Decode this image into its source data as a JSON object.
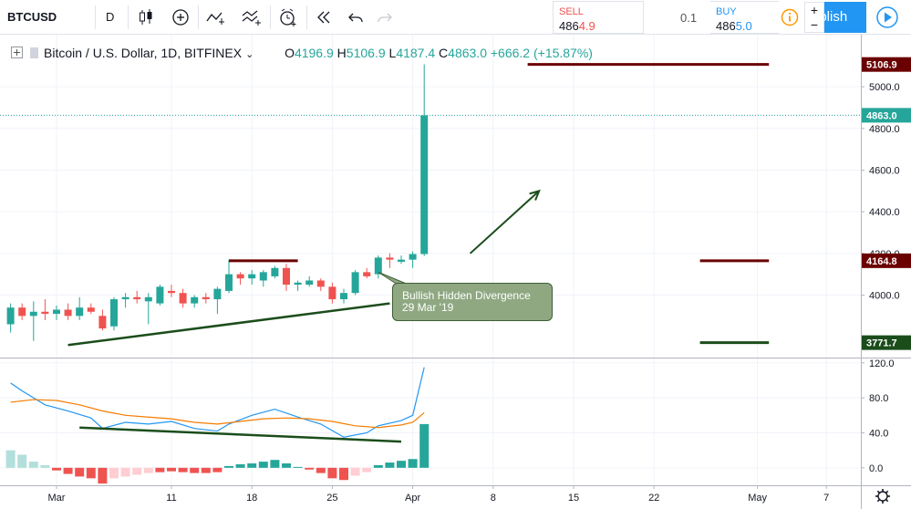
{
  "toolbar": {
    "symbol": "BTCUSD",
    "interval": "D",
    "icons": [
      "candles-icon",
      "add-indicator-icon",
      "drawing-icon",
      "compare-icon",
      "alert-icon",
      "replay-icon",
      "undo-icon",
      "redo-icon"
    ],
    "sell_label": "SELL",
    "sell_price_main": "486",
    "sell_price_hl": "4.9",
    "spread": "0.1",
    "buy_label": "BUY",
    "buy_price_main": "486",
    "buy_price_hl": "5.0",
    "publish_label": "ublish",
    "zoom_in": "+",
    "zoom_out": "−",
    "colors": {
      "sell": "#ef5350",
      "buy": "#2196f3",
      "publish": "#2196f3",
      "info": "#ff9800"
    }
  },
  "legend": {
    "title": "Bitcoin / U.S. Dollar, 1D, BITFINEX",
    "open_key": "O",
    "open": "4196.9",
    "high_key": "H",
    "high": "5106.9",
    "low_key": "L",
    "low": "4187.4",
    "close_key": "C",
    "close": "4863.0",
    "change": "+666.2 (+15.87%)"
  },
  "annotation": {
    "line1": "Bullish Hidden Divergence",
    "line2": "29 Mar '19"
  },
  "chart_data": [
    {
      "type": "candlestick",
      "title": "Bitcoin / U.S. Dollar, 1D, BITFINEX",
      "ylim": [
        3700,
        5250
      ],
      "y_ticks": [
        4000.0,
        4200.0,
        4400.0,
        4600.0,
        4800.0,
        5000.0
      ],
      "x_tick_labels": [
        {
          "label": "Mar",
          "day": 0
        },
        {
          "label": "11",
          "day": 10
        },
        {
          "label": "18",
          "day": 17
        },
        {
          "label": "25",
          "day": 24
        },
        {
          "label": "Apr",
          "day": 31
        },
        {
          "label": "8",
          "day": 38
        },
        {
          "label": "15",
          "day": 45
        },
        {
          "label": "22",
          "day": 52
        },
        {
          "label": "May",
          "day": 61
        },
        {
          "label": "7",
          "day": 67
        }
      ],
      "candles": [
        {
          "day": -4,
          "o": 3860,
          "h": 3960,
          "l": 3820,
          "c": 3940
        },
        {
          "day": -3,
          "o": 3940,
          "h": 3960,
          "l": 3880,
          "c": 3900
        },
        {
          "day": -2,
          "o": 3900,
          "h": 3970,
          "l": 3780,
          "c": 3920
        },
        {
          "day": -1,
          "o": 3920,
          "h": 3980,
          "l": 3880,
          "c": 3910
        },
        {
          "day": 0,
          "o": 3910,
          "h": 3950,
          "l": 3880,
          "c": 3930
        },
        {
          "day": 1,
          "o": 3930,
          "h": 3960,
          "l": 3880,
          "c": 3900
        },
        {
          "day": 2,
          "o": 3900,
          "h": 3990,
          "l": 3880,
          "c": 3940
        },
        {
          "day": 3,
          "o": 3940,
          "h": 3960,
          "l": 3910,
          "c": 3920
        },
        {
          "day": 4,
          "o": 3900,
          "h": 3930,
          "l": 3830,
          "c": 3840
        },
        {
          "day": 5,
          "o": 3850,
          "h": 3990,
          "l": 3830,
          "c": 3980
        },
        {
          "day": 6,
          "o": 3980,
          "h": 4010,
          "l": 3940,
          "c": 3990
        },
        {
          "day": 7,
          "o": 3990,
          "h": 4020,
          "l": 3960,
          "c": 3980
        },
        {
          "day": 8,
          "o": 3970,
          "h": 4010,
          "l": 3860,
          "c": 3990
        },
        {
          "day": 9,
          "o": 3960,
          "h": 4050,
          "l": 3950,
          "c": 4040
        },
        {
          "day": 10,
          "o": 4020,
          "h": 4050,
          "l": 3990,
          "c": 4010
        },
        {
          "day": 11,
          "o": 4010,
          "h": 4030,
          "l": 3940,
          "c": 3960
        },
        {
          "day": 12,
          "o": 3960,
          "h": 4000,
          "l": 3940,
          "c": 3990
        },
        {
          "day": 13,
          "o": 3990,
          "h": 4010,
          "l": 3960,
          "c": 3980
        },
        {
          "day": 14,
          "o": 3980,
          "h": 4040,
          "l": 3910,
          "c": 4030
        },
        {
          "day": 15,
          "o": 4020,
          "h": 4170,
          "l": 4010,
          "c": 4100
        },
        {
          "day": 16,
          "o": 4100,
          "h": 4110,
          "l": 4050,
          "c": 4080
        },
        {
          "day": 17,
          "o": 4080,
          "h": 4120,
          "l": 4050,
          "c": 4100
        },
        {
          "day": 18,
          "o": 4070,
          "h": 4120,
          "l": 4040,
          "c": 4110
        },
        {
          "day": 19,
          "o": 4090,
          "h": 4140,
          "l": 4080,
          "c": 4130
        },
        {
          "day": 20,
          "o": 4130,
          "h": 4150,
          "l": 4020,
          "c": 4050
        },
        {
          "day": 21,
          "o": 4050,
          "h": 4070,
          "l": 4020,
          "c": 4060
        },
        {
          "day": 22,
          "o": 4050,
          "h": 4090,
          "l": 4040,
          "c": 4070
        },
        {
          "day": 23,
          "o": 4070,
          "h": 4080,
          "l": 4020,
          "c": 4040
        },
        {
          "day": 24,
          "o": 4040,
          "h": 4060,
          "l": 3960,
          "c": 3980
        },
        {
          "day": 25,
          "o": 3980,
          "h": 4030,
          "l": 3960,
          "c": 4010
        },
        {
          "day": 26,
          "o": 4010,
          "h": 4120,
          "l": 4000,
          "c": 4110
        },
        {
          "day": 27,
          "o": 4110,
          "h": 4130,
          "l": 4080,
          "c": 4090
        },
        {
          "day": 28,
          "o": 4100,
          "h": 4190,
          "l": 4080,
          "c": 4180
        },
        {
          "day": 29,
          "o": 4180,
          "h": 4200,
          "l": 4130,
          "c": 4170
        },
        {
          "day": 30,
          "o": 4160,
          "h": 4190,
          "l": 4150,
          "c": 4170
        },
        {
          "day": 31,
          "o": 4170,
          "h": 4210,
          "l": 4130,
          "c": 4197
        },
        {
          "day": 32,
          "o": 4196.9,
          "h": 5106.9,
          "l": 4187.4,
          "c": 4863.0
        }
      ],
      "price_tags": [
        {
          "value": "5106.9",
          "price": 5106.9,
          "color": "#6b0000"
        },
        {
          "value": "4863.0",
          "price": 4863.0,
          "color": "#26a69a"
        },
        {
          "value": "4164.8",
          "price": 4164.8,
          "color": "#6b0000"
        },
        {
          "value": "3771.7",
          "price": 3771.7,
          "color": "#1b4d1b"
        }
      ],
      "horizontal_lines": [
        {
          "price": 5106.9,
          "from_day": 41,
          "to_day": 62,
          "color": "#6b0000"
        },
        {
          "price": 4164.8,
          "from_day": 56,
          "to_day": 62,
          "color": "#6b0000"
        },
        {
          "price": 3771.7,
          "from_day": 56,
          "to_day": 62,
          "color": "#1b4d1b"
        },
        {
          "price": 4164.8,
          "from_day": 15,
          "to_day": 21,
          "color": "#6b0000"
        }
      ],
      "trend_lines": [
        {
          "from": {
            "day": 1,
            "price": 3760
          },
          "to": {
            "day": 29,
            "price": 3960
          },
          "color": "#1b4d1b"
        }
      ],
      "arrow": {
        "from": {
          "day": 36,
          "price": 4200
        },
        "to": {
          "day": 42,
          "price": 4500
        },
        "color": "#1b4d1b"
      },
      "current_price_line": {
        "price": 4863.0,
        "color": "#26a69a"
      }
    },
    {
      "type": "line+bar",
      "ylim": [
        -20,
        125
      ],
      "y_ticks": [
        0.0,
        40.0,
        80.0,
        120.0
      ],
      "series": [
        {
          "color": "#2196f3",
          "values": [
            {
              "day": -4,
              "v": 97
            },
            {
              "day": -3,
              "v": 88
            },
            {
              "day": -2,
              "v": 80
            },
            {
              "day": -1,
              "v": 72
            },
            {
              "day": 1,
              "v": 65
            },
            {
              "day": 3,
              "v": 57
            },
            {
              "day": 4,
              "v": 45
            },
            {
              "day": 6,
              "v": 52
            },
            {
              "day": 8,
              "v": 50
            },
            {
              "day": 10,
              "v": 53
            },
            {
              "day": 12,
              "v": 45
            },
            {
              "day": 14,
              "v": 42
            },
            {
              "day": 15,
              "v": 50
            },
            {
              "day": 17,
              "v": 60
            },
            {
              "day": 19,
              "v": 67
            },
            {
              "day": 21,
              "v": 58
            },
            {
              "day": 23,
              "v": 50
            },
            {
              "day": 25,
              "v": 35
            },
            {
              "day": 27,
              "v": 40
            },
            {
              "day": 28,
              "v": 48
            },
            {
              "day": 30,
              "v": 54
            },
            {
              "day": 31,
              "v": 60
            },
            {
              "day": 32,
              "v": 115
            }
          ]
        },
        {
          "color": "#f57c00",
          "values": [
            {
              "day": -4,
              "v": 75
            },
            {
              "day": -2,
              "v": 78
            },
            {
              "day": 0,
              "v": 77
            },
            {
              "day": 2,
              "v": 72
            },
            {
              "day": 4,
              "v": 65
            },
            {
              "day": 6,
              "v": 60
            },
            {
              "day": 8,
              "v": 58
            },
            {
              "day": 10,
              "v": 56
            },
            {
              "day": 12,
              "v": 52
            },
            {
              "day": 14,
              "v": 50
            },
            {
              "day": 16,
              "v": 53
            },
            {
              "day": 18,
              "v": 56
            },
            {
              "day": 20,
              "v": 57
            },
            {
              "day": 22,
              "v": 56
            },
            {
              "day": 24,
              "v": 53
            },
            {
              "day": 26,
              "v": 48
            },
            {
              "day": 28,
              "v": 46
            },
            {
              "day": 30,
              "v": 49
            },
            {
              "day": 31,
              "v": 52
            },
            {
              "day": 32,
              "v": 63
            }
          ]
        }
      ],
      "histogram": [
        {
          "day": -4,
          "v": 20
        },
        {
          "day": -3,
          "v": 15
        },
        {
          "day": -2,
          "v": 7
        },
        {
          "day": -1,
          "v": 3
        },
        {
          "day": 0,
          "v": -3
        },
        {
          "day": 1,
          "v": -7
        },
        {
          "day": 2,
          "v": -10
        },
        {
          "day": 3,
          "v": -12
        },
        {
          "day": 4,
          "v": -18
        },
        {
          "day": 5,
          "v": -12
        },
        {
          "day": 6,
          "v": -10
        },
        {
          "day": 7,
          "v": -8
        },
        {
          "day": 8,
          "v": -6
        },
        {
          "day": 9,
          "v": -5
        },
        {
          "day": 10,
          "v": -4
        },
        {
          "day": 11,
          "v": -5
        },
        {
          "day": 12,
          "v": -6
        },
        {
          "day": 13,
          "v": -6
        },
        {
          "day": 14,
          "v": -5
        },
        {
          "day": 15,
          "v": 2
        },
        {
          "day": 16,
          "v": 4
        },
        {
          "day": 17,
          "v": 5
        },
        {
          "day": 18,
          "v": 7
        },
        {
          "day": 19,
          "v": 9
        },
        {
          "day": 20,
          "v": 5
        },
        {
          "day": 21,
          "v": 1
        },
        {
          "day": 22,
          "v": -2
        },
        {
          "day": 23,
          "v": -6
        },
        {
          "day": 24,
          "v": -12
        },
        {
          "day": 25,
          "v": -14
        },
        {
          "day": 26,
          "v": -9
        },
        {
          "day": 27,
          "v": -5
        },
        {
          "day": 28,
          "v": 3
        },
        {
          "day": 29,
          "v": 6
        },
        {
          "day": 30,
          "v": 8
        },
        {
          "day": 31,
          "v": 10
        },
        {
          "day": 32,
          "v": 50
        }
      ],
      "trend_lines": [
        {
          "from": {
            "day": 2,
            "v": 46
          },
          "to": {
            "day": 30,
            "v": 30
          },
          "color": "#1b4d1b"
        }
      ]
    }
  ]
}
